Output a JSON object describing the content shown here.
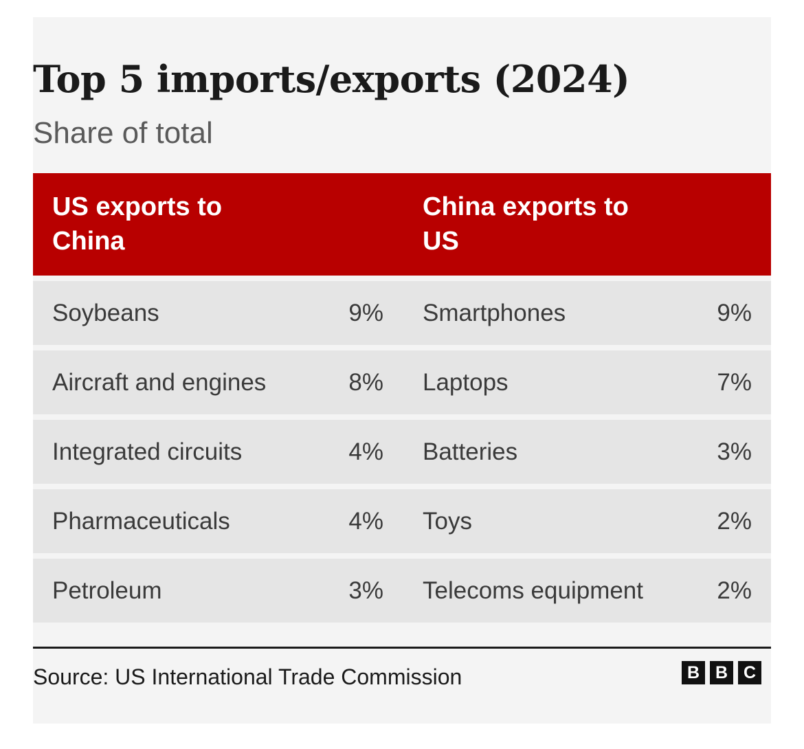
{
  "chart_data": {
    "type": "table",
    "title": "Top 5 imports/exports (2024)",
    "subtitle": "Share of total",
    "columns": [
      "US exports to China",
      "China exports to US"
    ],
    "rows": [
      {
        "us_item": "Soybeans",
        "us_value": "9%",
        "cn_item": "Smartphones",
        "cn_value": "9%"
      },
      {
        "us_item": "Aircraft and engines",
        "us_value": "8%",
        "cn_item": "Laptops",
        "cn_value": "7%"
      },
      {
        "us_item": "Integrated circuits",
        "us_value": "4%",
        "cn_item": "Batteries",
        "cn_value": "3%"
      },
      {
        "us_item": "Pharmaceuticals",
        "us_value": "4%",
        "cn_item": "Toys",
        "cn_value": "2%"
      },
      {
        "us_item": "Petroleum",
        "us_value": "3%",
        "cn_item": "Telecoms equipment",
        "cn_value": "2%"
      }
    ],
    "source": "Source: US International Trade Commission"
  },
  "branding": {
    "logo_letters": [
      "B",
      "B",
      "C"
    ]
  },
  "colors": {
    "header_bg": "#b80000",
    "card_bg": "#f4f4f4",
    "row_bg": "#e5e5e5"
  }
}
